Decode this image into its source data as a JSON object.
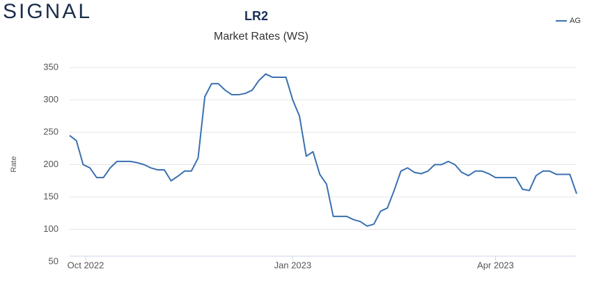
{
  "logo": "SIGNAL",
  "chart_data": {
    "type": "line",
    "title": "LR2",
    "subtitle": "Market Rates (WS)",
    "y_label": "Rate",
    "ylim": [
      50,
      350
    ],
    "yticks": [
      50,
      100,
      150,
      200,
      250,
      300,
      350
    ],
    "grid": true,
    "xlim": [
      0,
      75
    ],
    "xticks": [
      {
        "value": 2.37,
        "label": "Oct 2022"
      },
      {
        "value": 33.0,
        "label": "Jan 2023"
      },
      {
        "value": 63.0,
        "label": "Apr 2023"
      }
    ],
    "legend": "top-right",
    "series": [
      {
        "name": "AG",
        "color": "#3a6fb0",
        "values": [
          245,
          237,
          200,
          195,
          180,
          180,
          195,
          205,
          205,
          205,
          203,
          200,
          195,
          192,
          192,
          175,
          182,
          190,
          190,
          210,
          305,
          325,
          325,
          315,
          308,
          308,
          310,
          315,
          330,
          340,
          335,
          335,
          335,
          300,
          275,
          213,
          220,
          185,
          170,
          120,
          120,
          120,
          115,
          112,
          105,
          108,
          128,
          133,
          160,
          190,
          195,
          188,
          186,
          190,
          200,
          200,
          205,
          200,
          188,
          183,
          190,
          190,
          186,
          180,
          180,
          180,
          180,
          162,
          160,
          183,
          190,
          190,
          185,
          185,
          185,
          155
        ]
      }
    ]
  }
}
